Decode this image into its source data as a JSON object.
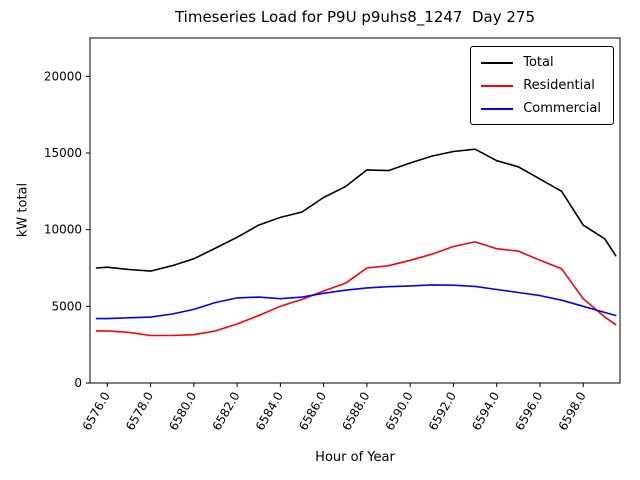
{
  "chart_data": {
    "type": "line",
    "title": "Timeseries Load for P9U p9uhs8_1247  Day 275",
    "xlabel": "Hour of Year",
    "ylabel": "kW total",
    "xlim": [
      6575.2,
      6599.7
    ],
    "ylim": [
      0,
      22500
    ],
    "grid": false,
    "legend_position": "upper right",
    "x_ticks": [
      6576,
      6578,
      6580,
      6582,
      6584,
      6586,
      6588,
      6590,
      6592,
      6594,
      6596,
      6598
    ],
    "x_tick_labels": [
      "6576.0",
      "6578.0",
      "6580.0",
      "6582.0",
      "6584.0",
      "6586.0",
      "6588.0",
      "6590.0",
      "6592.0",
      "6594.0",
      "6596.0",
      "6598.0"
    ],
    "y_ticks": [
      0,
      5000,
      10000,
      15000,
      20000
    ],
    "y_tick_labels": [
      "0",
      "5000",
      "10000",
      "15000",
      "20000"
    ],
    "x": [
      6575.5,
      6576,
      6577,
      6578,
      6579,
      6580,
      6581,
      6582,
      6583,
      6584,
      6585,
      6586,
      6587,
      6588,
      6589,
      6590,
      6591,
      6592,
      6593,
      6594,
      6595,
      6596,
      6597,
      6598,
      6599,
      6599.5
    ],
    "series": [
      {
        "name": "Total",
        "color": "#000000",
        "values": [
          7500,
          7550,
          7400,
          7300,
          7650,
          8100,
          8800,
          9500,
          10300,
          10800,
          11150,
          12100,
          12800,
          13900,
          13850,
          14350,
          14800,
          15100,
          15250,
          14500,
          14100,
          13300,
          12500,
          10300,
          9400,
          8300
        ]
      },
      {
        "name": "Residential",
        "color": "#ff0000",
        "values": [
          3400,
          3400,
          3300,
          3100,
          3100,
          3150,
          3400,
          3850,
          4400,
          5000,
          5450,
          6000,
          6500,
          7500,
          7650,
          8000,
          8400,
          8900,
          9200,
          8750,
          8600,
          8000,
          7450,
          5500,
          4300,
          3800
        ]
      },
      {
        "name": "Commercial",
        "color": "#0000ff",
        "values": [
          4200,
          4200,
          4250,
          4300,
          4500,
          4800,
          5250,
          5550,
          5600,
          5500,
          5600,
          5850,
          6050,
          6200,
          6280,
          6330,
          6400,
          6380,
          6300,
          6100,
          5900,
          5700,
          5400,
          5000,
          4600,
          4400
        ]
      }
    ]
  }
}
